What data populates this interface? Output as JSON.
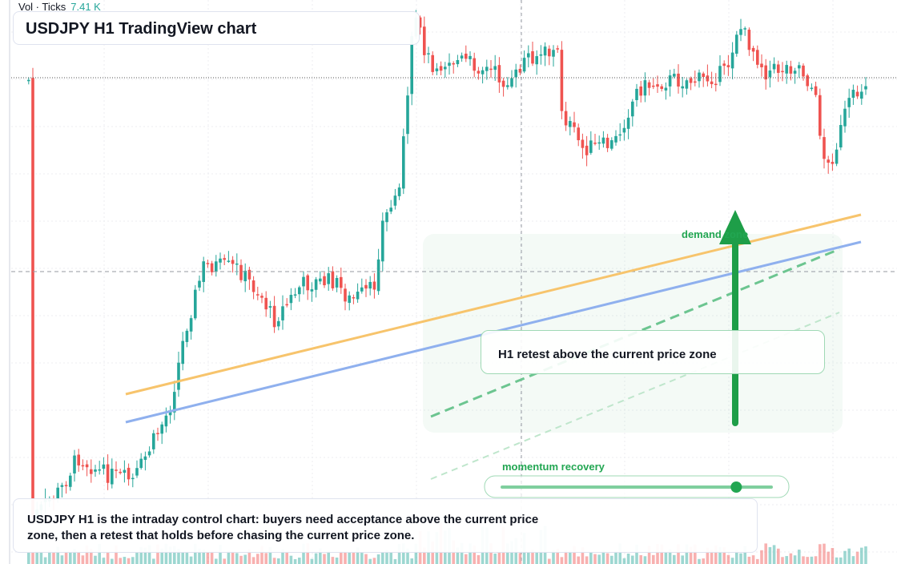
{
  "volume_header": {
    "label": "Vol · Ticks",
    "value": "7.41 K"
  },
  "chart_title": "USDJPY H1 TradingView chart",
  "callout_text": "H1 retest above the current price zone",
  "zone_label": "demand zone",
  "momentum_label": "momentum recovery",
  "momentum_level": 0.87,
  "caption": "USDJPY H1 is the intraday control chart: buyers need acceptance above the current price zone, then a retest that holds before chasing the current price zone.",
  "colors": {
    "up": "#26a69a",
    "down": "#ef5350",
    "accent_green": "#22a652",
    "orange_line": "#f7c46c",
    "blue_line": "#8fb0ee"
  }
}
